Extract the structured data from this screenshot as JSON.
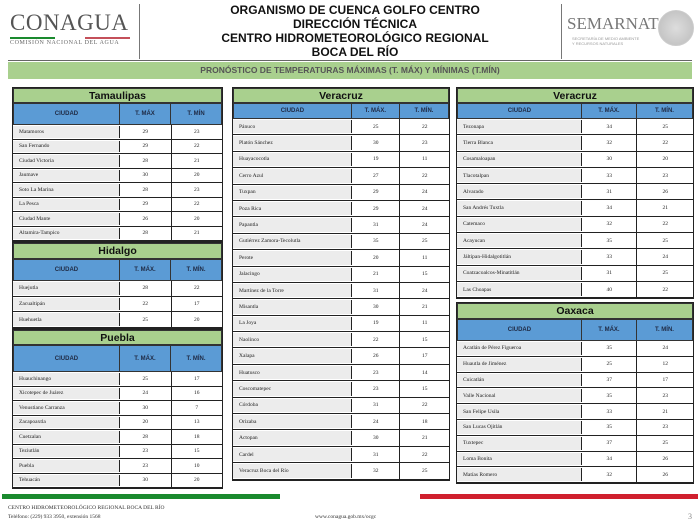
{
  "header": {
    "logo_left": "CONAGUA",
    "logo_left_sub": "COMISIÓN NACIONAL DEL AGUA",
    "title_lines": [
      "ORGANISMO DE CUENCA GOLFO CENTRO",
      "DIRECCIÓN TÉCNICA",
      "CENTRO HIDROMETEOROLÓGICO REGIONAL",
      "BOCA DEL RÍO"
    ],
    "logo_right": "SEMARNAT",
    "logo_right_sub": "SECRETARÍA DE MEDIO AMBIENTE Y RECURSOS NATURALES",
    "banner": "PRONÓSTICO DE TEMPERATURAS MÁXIMAS (T. MÁX) Y MÍNIMAS (T.MÍN)"
  },
  "colors": {
    "title_green": "#a9d08e",
    "header_blue": "#5b9bd5",
    "footer_green": "#1a8a2e",
    "footer_red": "#d0202e"
  },
  "tables": [
    {
      "state": "Tamaulipas",
      "columns": [
        "CIUDAD",
        "T. MÁX",
        "T. MÍN"
      ],
      "rows": [
        [
          "Matamoros",
          "29",
          "23"
        ],
        [
          "San Fernando",
          "29",
          "22"
        ],
        [
          "Ciudad Victoria",
          "28",
          "21"
        ],
        [
          "Jaumave",
          "30",
          "20"
        ],
        [
          "Soto La Marina",
          "28",
          "23"
        ],
        [
          "La Pesca",
          "29",
          "22"
        ],
        [
          "Ciudad Mante",
          "26",
          "20"
        ],
        [
          "Altamira-Tampico",
          "28",
          "21"
        ]
      ]
    },
    {
      "state": "Hidalgo",
      "columns": [
        "CIUDAD",
        "T. MÁX.",
        "T. MÍN."
      ],
      "rows": [
        [
          "Huejutla",
          "28",
          "22"
        ],
        [
          "Zacualtipán",
          "22",
          "17"
        ],
        [
          "Huehuetla",
          "25",
          "20"
        ]
      ]
    },
    {
      "state": "Puebla",
      "columns": [
        "CIUDAD",
        "T. MÁX.",
        "T. MÍN."
      ],
      "rows": [
        [
          "Huauchinango",
          "25",
          "17"
        ],
        [
          "Xicotepec de Juárez",
          "24",
          "16"
        ],
        [
          "Venustiano Carranza",
          "30",
          "7"
        ],
        [
          "Zacapoaxtla",
          "20",
          "13"
        ],
        [
          "Cuetzalan",
          "28",
          "18"
        ],
        [
          "Teziutlán",
          "23",
          "15"
        ],
        [
          "Puebla",
          "23",
          "10"
        ],
        [
          "Tehuacán",
          "30",
          "20"
        ]
      ]
    },
    {
      "state": "Veracruz",
      "columns": [
        "CIUDAD",
        "T. MÁX.",
        "T. MÍN."
      ],
      "rows": [
        [
          "Pánuco",
          "25",
          "22"
        ],
        [
          "Platón Sánchez",
          "30",
          "23"
        ],
        [
          "Huayacocotla",
          "19",
          "11"
        ],
        [
          "Cerro Azul",
          "27",
          "22"
        ],
        [
          "Tuxpan",
          "29",
          "24"
        ],
        [
          "Poza Rica",
          "29",
          "24"
        ],
        [
          "Papantla",
          "31",
          "24"
        ],
        [
          "Gutiérrez Zamora-Tecolutla",
          "35",
          "25"
        ],
        [
          "Perote",
          "20",
          "11"
        ],
        [
          "Jalacingo",
          "21",
          "15"
        ],
        [
          "Martínez de la Torre",
          "31",
          "24"
        ],
        [
          "Misantla",
          "30",
          "21"
        ],
        [
          "La Joya",
          "19",
          "11"
        ],
        [
          "Naolinco",
          "22",
          "15"
        ],
        [
          "Xalapa",
          "26",
          "17"
        ],
        [
          "Huatusco",
          "23",
          "14"
        ],
        [
          "Coscomatepec",
          "23",
          "15"
        ],
        [
          "Córdoba",
          "31",
          "22"
        ],
        [
          "Orizaba",
          "24",
          "18"
        ],
        [
          "Actopan",
          "30",
          "21"
        ],
        [
          "Cardel",
          "31",
          "22"
        ],
        [
          "Veracruz Boca del Río",
          "32",
          "25"
        ]
      ]
    },
    {
      "state": "Veracruz",
      "columns": [
        "CIUDAD",
        "T. MÁX.",
        "T. MÍN."
      ],
      "rows": [
        [
          "Tezonapa",
          "34",
          "25"
        ],
        [
          "Tierra Blanca",
          "32",
          "22"
        ],
        [
          "Cosamaloapan",
          "30",
          "20"
        ],
        [
          "Tlacotalpan",
          "33",
          "23"
        ],
        [
          "Alvarado",
          "31",
          "26"
        ],
        [
          "San Andrés Tuxtla",
          "34",
          "21"
        ],
        [
          "Catemaco",
          "32",
          "22"
        ],
        [
          "Acayucan",
          "35",
          "25"
        ],
        [
          "Jáltipan-Hidalgotitlán",
          "33",
          "24"
        ],
        [
          "Coatzacoalcos-Minatitlán",
          "31",
          "25"
        ],
        [
          "Las Choapas",
          "40",
          "22"
        ]
      ]
    },
    {
      "state": "Oaxaca",
      "columns": [
        "CIUDAD",
        "T. MÁX.",
        "T. MÍN."
      ],
      "rows": [
        [
          "Acatlán de Pérez Figueroa",
          "35",
          "24"
        ],
        [
          "Huautla de Jiménez",
          "25",
          "12"
        ],
        [
          "Cuicatlán",
          "37",
          "17"
        ],
        [
          "Valle Nacional",
          "35",
          "23"
        ],
        [
          "San Felipe Usila",
          "33",
          "21"
        ],
        [
          "San Lucas Ojitlán",
          "35",
          "23"
        ],
        [
          "Tuxtepec",
          "37",
          "25"
        ],
        [
          "Loma Bonita",
          "34",
          "26"
        ],
        [
          "Matías Romero",
          "32",
          "26"
        ]
      ]
    }
  ],
  "footer": {
    "org": "CENTRO HIDROMETEOROLÓGICO REGIONAL BOCA DEL RÍO",
    "phone": "Teléfono: (229) 933 3950, extensión 1568",
    "url": "www.conagua.gob.mx/ocgc",
    "page": "3"
  }
}
